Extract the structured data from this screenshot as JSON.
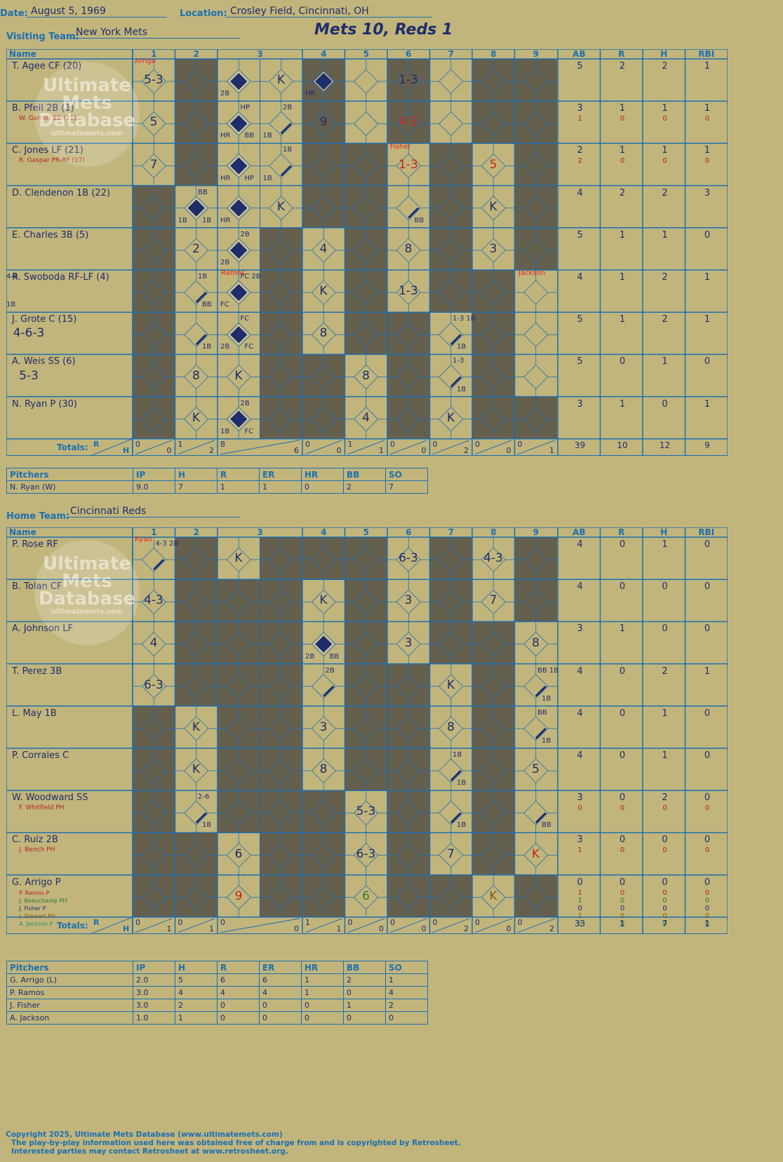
{
  "header": {
    "date_label": "Date:",
    "date_value": "August 5, 1969",
    "location_label": "Location:",
    "location_value": "Crosley Field, Cincinnati, OH",
    "visiting_label": "Visiting Team:",
    "visiting_value": "New York Mets",
    "home_label": "Home Team:",
    "home_value": "Cincinnati Reds",
    "title": "Mets 10, Reds 1"
  },
  "columns": {
    "name": "Name",
    "innings": [
      "1",
      "2",
      "3",
      "4",
      "5",
      "6",
      "7",
      "8",
      "9"
    ],
    "stats": [
      "AB",
      "R",
      "H",
      "RBI"
    ],
    "totals_label": "Totals:",
    "r": "R",
    "h": "H"
  },
  "watermark": {
    "line1": "Ultimate",
    "line2": "Mets",
    "line3": "Database",
    "url": "ultimatemets.com"
  },
  "visitors": {
    "players": [
      {
        "name": "T. Agee CF (20)",
        "subs": [],
        "stats": [
          "5",
          "2",
          "2",
          "1"
        ],
        "sub_stats": []
      },
      {
        "name": "B. Pfeil 2B (1)",
        "subs": [
          {
            "text": "W. Garrett 2B (11)",
            "color": "#b3241e"
          }
        ],
        "stats": [
          "3",
          "1",
          "1",
          "1"
        ],
        "sub_stats": [
          [
            "1",
            "0",
            "0",
            "0"
          ]
        ]
      },
      {
        "name": "C. Jones LF (21)",
        "subs": [
          {
            "text": "R. Gaspar PR-RF (17)",
            "color": "#b3241e"
          }
        ],
        "stats": [
          "2",
          "1",
          "1",
          "1"
        ],
        "sub_stats": [
          [
            "2",
            "0",
            "0",
            "0"
          ]
        ]
      },
      {
        "name": "D. Clendenon 1B (22)",
        "subs": [],
        "stats": [
          "4",
          "2",
          "2",
          "3"
        ],
        "sub_stats": []
      },
      {
        "name": "E. Charles 3B (5)",
        "subs": [],
        "stats": [
          "5",
          "1",
          "1",
          "0"
        ],
        "sub_stats": []
      },
      {
        "name": "R. Swoboda RF-LF (4)",
        "subs": [],
        "stats": [
          "4",
          "1",
          "2",
          "1"
        ],
        "sub_stats": []
      },
      {
        "name": "J. Grote C (15)",
        "subs": [],
        "stats": [
          "5",
          "1",
          "2",
          "1"
        ],
        "sub_stats": []
      },
      {
        "name": "A. Weis SS (6)",
        "subs": [],
        "stats": [
          "5",
          "0",
          "1",
          "0"
        ],
        "sub_stats": []
      },
      {
        "name": "N. Ryan P (30)",
        "subs": [],
        "stats": [
          "3",
          "1",
          "0",
          "1"
        ],
        "sub_stats": []
      }
    ],
    "totals": {
      "innings": [
        [
          "0",
          "0"
        ],
        [
          "1",
          "2"
        ],
        [
          "8",
          "6"
        ],
        [
          "0",
          "0"
        ],
        [
          "1",
          "1"
        ],
        [
          "0",
          "0"
        ],
        [
          "0",
          "2"
        ],
        [
          "0",
          "0"
        ],
        [
          "0",
          "1"
        ]
      ],
      "stats": [
        "39",
        "10",
        "12",
        "9"
      ]
    },
    "pitchers_header": [
      "Pitchers",
      "IP",
      "H",
      "R",
      "ER",
      "HR",
      "BB",
      "SO"
    ],
    "pitchers": [
      [
        "N. Ryan (W)",
        "9.0",
        "7",
        "1",
        "1",
        "0",
        "2",
        "7"
      ]
    ]
  },
  "home": {
    "players": [
      {
        "name": "P. Rose RF",
        "subs": [],
        "stats": [
          "4",
          "0",
          "1",
          "0"
        ],
        "sub_stats": []
      },
      {
        "name": "B. Tolan CF",
        "subs": [],
        "stats": [
          "4",
          "0",
          "0",
          "0"
        ],
        "sub_stats": []
      },
      {
        "name": "A. Johnson LF",
        "subs": [],
        "stats": [
          "3",
          "1",
          "0",
          "0"
        ],
        "sub_stats": []
      },
      {
        "name": "T. Perez 3B",
        "subs": [],
        "stats": [
          "4",
          "0",
          "2",
          "1"
        ],
        "sub_stats": []
      },
      {
        "name": "L. May 1B",
        "subs": [],
        "stats": [
          "4",
          "0",
          "1",
          "0"
        ],
        "sub_stats": []
      },
      {
        "name": "P. Corrales C",
        "subs": [],
        "stats": [
          "4",
          "0",
          "1",
          "0"
        ],
        "sub_stats": []
      },
      {
        "name": "W. Woodward SS",
        "subs": [
          {
            "text": "F. Whitfield PH",
            "color": "#b3241e"
          }
        ],
        "stats": [
          "3",
          "0",
          "2",
          "0"
        ],
        "sub_stats": [
          [
            "0",
            "0",
            "0",
            "0"
          ]
        ]
      },
      {
        "name": "C. Ruiz 2B",
        "subs": [
          {
            "text": "J. Bench PH",
            "color": "#b3241e"
          }
        ],
        "stats": [
          "3",
          "0",
          "0",
          "0"
        ],
        "sub_stats": [
          [
            "1",
            "0",
            "0",
            "0"
          ]
        ]
      },
      {
        "name": "G. Arrigo P",
        "subs": [
          {
            "text": "P. Ramos P",
            "color": "#b3241e"
          },
          {
            "text": "J. Beauchamp PH",
            "color": "#2c7a2c"
          },
          {
            "text": "J. Fisher P",
            "color": "#1f2d6b"
          },
          {
            "text": "J. Stewart PH",
            "color": "#8a5a10"
          },
          {
            "text": "A. Jackson P",
            "color": "#2c8a6a"
          }
        ],
        "stats": [
          "0",
          "0",
          "0",
          "0"
        ],
        "sub_stats": [
          [
            "1",
            "0",
            "0",
            "0"
          ],
          [
            "1",
            "0",
            "0",
            "0"
          ],
          [
            "0",
            "0",
            "0",
            "0"
          ],
          [
            "1",
            "0",
            "0",
            "0"
          ],
          [
            "0",
            "0",
            "0",
            "0"
          ]
        ]
      }
    ],
    "totals": {
      "innings": [
        [
          "0",
          "1"
        ],
        [
          "0",
          "1"
        ],
        [
          "0",
          "0"
        ],
        [
          "1",
          "1"
        ],
        [
          "0",
          "0"
        ],
        [
          "0",
          "0"
        ],
        [
          "0",
          "2"
        ],
        [
          "0",
          "0"
        ],
        [
          "0",
          "2"
        ]
      ],
      "stats": [
        "33",
        "1",
        "7",
        "1"
      ]
    },
    "pitchers_header": [
      "Pitchers",
      "IP",
      "H",
      "R",
      "ER",
      "HR",
      "BB",
      "SO"
    ],
    "pitchers": [
      [
        "G. Arrigo (L)",
        "2.0",
        "5",
        "6",
        "6",
        "1",
        "2",
        "1"
      ],
      [
        "P. Ramos",
        "3.0",
        "4",
        "4",
        "4",
        "1",
        "0",
        "4"
      ],
      [
        "J. Fisher",
        "3.0",
        "2",
        "0",
        "0",
        "0",
        "1",
        "2"
      ],
      [
        "A. Jackson",
        "1.0",
        "1",
        "0",
        "0",
        "0",
        "0",
        "0"
      ]
    ]
  },
  "plays": {
    "visitors": [
      {
        "r": 0,
        "c": 0,
        "t": "5-3"
      },
      {
        "r": 0,
        "c": 2,
        "run": true,
        "n": "2B"
      },
      {
        "r": 0,
        "c": 3,
        "t": "K"
      },
      {
        "r": 0,
        "c": 4,
        "run": true,
        "n": "HR"
      },
      {
        "r": 0,
        "c": 6,
        "t": "1-3"
      },
      {
        "r": 1,
        "c": 0,
        "t": "5"
      },
      {
        "r": 1,
        "c": 2,
        "run": true,
        "n": "HR",
        "n2": "BB",
        "n3": "HP"
      },
      {
        "r": 1,
        "c": 3,
        "t": "",
        "n": "1B",
        "n3": "2B"
      },
      {
        "r": 1,
        "c": 4,
        "t": "9"
      },
      {
        "r": 1,
        "c": 6,
        "t": "4-3",
        "red": true
      },
      {
        "r": 2,
        "c": 0,
        "t": "7"
      },
      {
        "r": 2,
        "c": 2,
        "run": true,
        "n": "HR",
        "n2": "HP"
      },
      {
        "r": 2,
        "c": 3,
        "t": "",
        "n": "1B",
        "n3": "1B"
      },
      {
        "r": 2,
        "c": 6,
        "t": "1-3",
        "red": true
      },
      {
        "r": 2,
        "c": 8,
        "t": "5",
        "red": true
      },
      {
        "r": 3,
        "c": 1,
        "run": true,
        "n": "1B",
        "n2": "1B",
        "n3": "BB"
      },
      {
        "r": 3,
        "c": 2,
        "run": true,
        "n": "HR"
      },
      {
        "r": 3,
        "c": 3,
        "t": "K"
      },
      {
        "r": 3,
        "c": 6,
        "t": "",
        "n2": "BB"
      },
      {
        "r": 3,
        "c": 8,
        "t": "K"
      },
      {
        "r": 4,
        "c": 1,
        "t": "2"
      },
      {
        "r": 4,
        "c": 2,
        "run": true,
        "n": "2B",
        "n3": "2B"
      },
      {
        "r": 4,
        "c": 4,
        "t": "4"
      },
      {
        "r": 4,
        "c": 6,
        "t": "8"
      },
      {
        "r": 4,
        "c": 8,
        "t": "3"
      },
      {
        "r": 5,
        "c": 1,
        "t": "",
        "n2": "BB",
        "n3": "1B"
      },
      {
        "r": 5,
        "c": 2,
        "run": true,
        "n": "FC",
        "n3": "FC 2B"
      },
      {
        "r": 5,
        "c": 4,
        "t": "K"
      },
      {
        "r": 5,
        "c": 6,
        "t": "1-3"
      },
      {
        "r": 5,
        "c": 10,
        "t": "",
        "n2": "1B",
        "n3": "4-6"
      },
      {
        "r": 6,
        "c": 1,
        "t": "",
        "n2": "1B"
      },
      {
        "r": 6,
        "c": 2,
        "run": true,
        "n": "2B",
        "n2": "FC",
        "n3": "FC"
      },
      {
        "r": 6,
        "c": 4,
        "t": "8"
      },
      {
        "r": 6,
        "c": 7,
        "t": "",
        "n2": "1B",
        "n3": "1-3 1B"
      },
      {
        "r": 6,
        "c": 10,
        "t": "4-6-3"
      },
      {
        "r": 7,
        "c": 1,
        "t": "8"
      },
      {
        "r": 7,
        "c": 2,
        "t": "K"
      },
      {
        "r": 7,
        "c": 5,
        "t": "8"
      },
      {
        "r": 7,
        "c": 7,
        "t": "",
        "n2": "1B",
        "n3": "1-3"
      },
      {
        "r": 7,
        "c": 10,
        "t": "5-3"
      },
      {
        "r": 8,
        "c": 1,
        "t": "K"
      },
      {
        "r": 8,
        "c": 2,
        "run": true,
        "n": "1B",
        "n2": "FC",
        "n3": "2B"
      },
      {
        "r": 8,
        "c": 5,
        "t": "4"
      },
      {
        "r": 8,
        "c": 7,
        "t": "K"
      }
    ],
    "home": [
      {
        "r": 0,
        "c": 0,
        "t": "",
        "n3": "4-3 2B"
      },
      {
        "r": 0,
        "c": 2,
        "t": "K"
      },
      {
        "r": 0,
        "c": 6,
        "t": "6-3"
      },
      {
        "r": 0,
        "c": 8,
        "t": "4-3"
      },
      {
        "r": 1,
        "c": 0,
        "t": "4-3"
      },
      {
        "r": 1,
        "c": 4,
        "t": "K"
      },
      {
        "r": 1,
        "c": 6,
        "t": "3"
      },
      {
        "r": 1,
        "c": 8,
        "t": "7"
      },
      {
        "r": 2,
        "c": 0,
        "t": "4"
      },
      {
        "r": 2,
        "c": 4,
        "run": true,
        "n": "2B",
        "n2": "BB"
      },
      {
        "r": 2,
        "c": 6,
        "t": "3"
      },
      {
        "r": 2,
        "c": 9,
        "t": "8"
      },
      {
        "r": 3,
        "c": 0,
        "t": "6-3"
      },
      {
        "r": 3,
        "c": 4,
        "t": "",
        "n3": "2B"
      },
      {
        "r": 3,
        "c": 7,
        "t": "K"
      },
      {
        "r": 3,
        "c": 9,
        "t": "",
        "n2": "1B",
        "n3": "BB 1B"
      },
      {
        "r": 4,
        "c": 1,
        "t": "K"
      },
      {
        "r": 4,
        "c": 4,
        "t": "3"
      },
      {
        "r": 4,
        "c": 7,
        "t": "8"
      },
      {
        "r": 4,
        "c": 9,
        "t": "",
        "n2": "1B",
        "n3": "BB"
      },
      {
        "r": 5,
        "c": 1,
        "t": "K"
      },
      {
        "r": 5,
        "c": 4,
        "t": "8"
      },
      {
        "r": 5,
        "c": 7,
        "t": "",
        "n2": "1B",
        "n3": "1B"
      },
      {
        "r": 5,
        "c": 9,
        "t": "5"
      },
      {
        "r": 6,
        "c": 1,
        "t": "",
        "n2": "1B",
        "n3": "2-6"
      },
      {
        "r": 6,
        "c": 5,
        "t": "5-3"
      },
      {
        "r": 6,
        "c": 7,
        "t": "",
        "n2": "1B"
      },
      {
        "r": 6,
        "c": 9,
        "t": "",
        "n2": "BB"
      },
      {
        "r": 7,
        "c": 2,
        "t": "6"
      },
      {
        "r": 7,
        "c": 5,
        "t": "6-3"
      },
      {
        "r": 7,
        "c": 7,
        "t": "7"
      },
      {
        "r": 7,
        "c": 9,
        "t": "K",
        "red": true
      },
      {
        "r": 8,
        "c": 2,
        "t": "9",
        "red": true
      },
      {
        "r": 8,
        "c": 5,
        "t": "6",
        "green": true
      },
      {
        "r": 8,
        "c": 8,
        "t": "K",
        "brown": true
      }
    ]
  },
  "notes": {
    "arrigo": "Arrigo",
    "fisher": "Fisher",
    "ramos": "Ramos",
    "jackson": "Jackson",
    "ryan": "Ryan"
  },
  "footer": {
    "line1": "Copyright 2025, Ultimate Mets Database (www.ultimatemets.com)",
    "line2": "The play-by-play information used here was obtained free of charge from and is copyrighted by Retrosheet.",
    "line3": "Interested parties may contact Retrosheet at www.retrosheet.org."
  },
  "colors": {
    "label": "#1d6fb0",
    "ink": "#1f2d6b",
    "gray": "#655f4e",
    "bg": "#c1b57c",
    "red": "#e1241a"
  }
}
